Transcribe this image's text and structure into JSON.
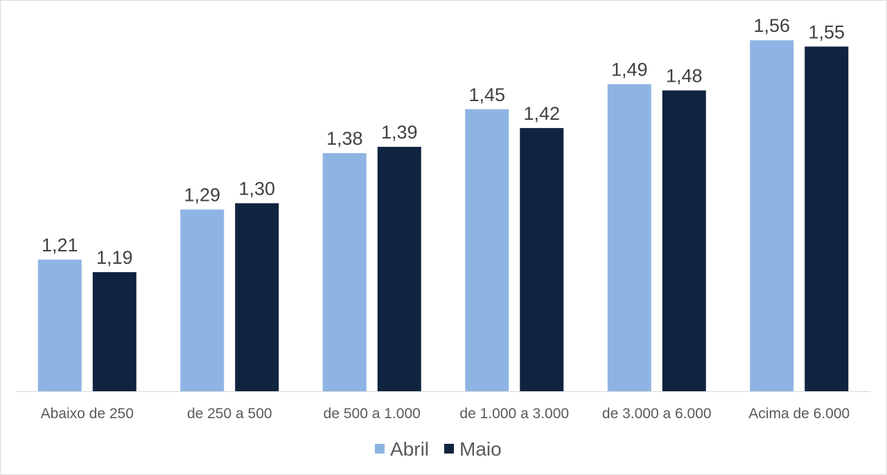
{
  "chart_data": {
    "type": "bar",
    "title": "",
    "xlabel": "",
    "ylabel": "",
    "ylim": [
      1.0,
      1.6
    ],
    "grid": false,
    "legend_position": "bottom",
    "categories": [
      "Abaixo de 250",
      "de 250 a 500",
      "de 500 a 1.000",
      "de 1.000 a 3.000",
      "de 3.000 a 6.000",
      "Acima de 6.000"
    ],
    "series": [
      {
        "name": "Abril",
        "color": "#8EB4E3",
        "values": [
          1.21,
          1.29,
          1.38,
          1.45,
          1.49,
          1.56
        ],
        "labels": [
          "1,21",
          "1,29",
          "1,38",
          "1,45",
          "1,49",
          "1,56"
        ]
      },
      {
        "name": "Maio",
        "color": "#10243F",
        "values": [
          1.19,
          1.3,
          1.39,
          1.42,
          1.48,
          1.55
        ],
        "labels": [
          "1,19",
          "1,30",
          "1,39",
          "1,42",
          "1,48",
          "1,55"
        ]
      }
    ]
  }
}
